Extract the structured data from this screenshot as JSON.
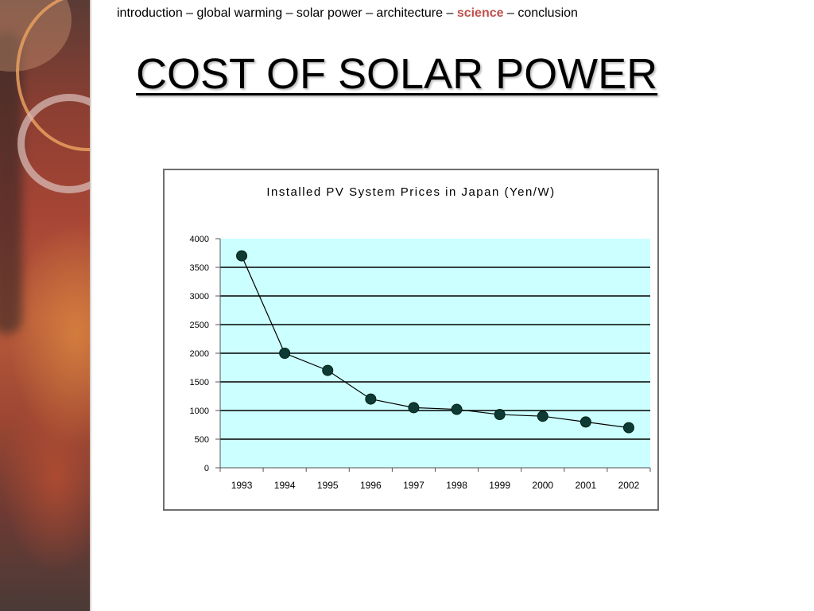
{
  "nav": {
    "items": [
      "introduction",
      "global warming",
      "solar power",
      "architecture",
      "science",
      "conclusion"
    ],
    "active": "science",
    "separator": " – "
  },
  "title": "COST OF SOLAR POWER",
  "colors": {
    "nav_active": "#c0504d",
    "plot_background": "#ccffff",
    "series": "#0e3a35"
  },
  "chart_data": {
    "type": "line",
    "title": "Installed PV System Prices in Japan (Yen/W)",
    "xlabel": "",
    "ylabel": "",
    "categories": [
      "1993",
      "1994",
      "1995",
      "1996",
      "1997",
      "1998",
      "1999",
      "2000",
      "2001",
      "2002"
    ],
    "series": [
      {
        "values": [
          3700,
          2000,
          1700,
          1200,
          1050,
          1020,
          930,
          900,
          800,
          700
        ]
      }
    ],
    "ylim": [
      0,
      4000
    ],
    "yticks": [
      0,
      500,
      1000,
      1500,
      2000,
      2500,
      3000,
      3500,
      4000
    ],
    "ytick_labels": [
      "0",
      "500",
      "1000",
      "1500",
      "2000",
      "2500",
      "3000",
      "3500",
      "4000"
    ],
    "grid": true,
    "legend": false
  }
}
